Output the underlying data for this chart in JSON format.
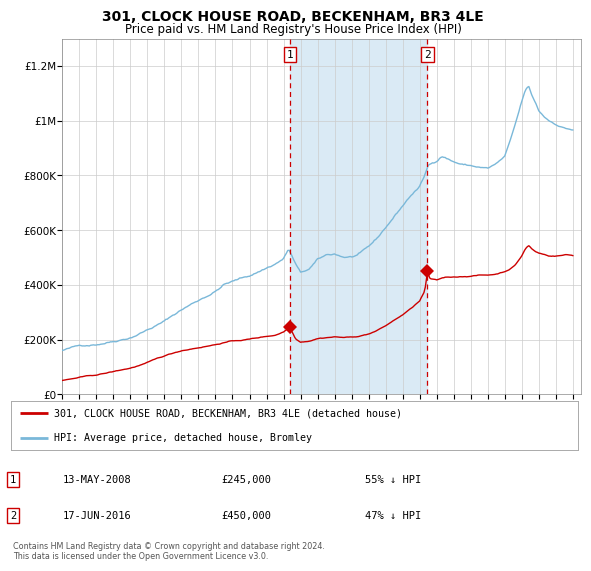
{
  "title": "301, CLOCK HOUSE ROAD, BECKENHAM, BR3 4LE",
  "subtitle": "Price paid vs. HM Land Registry's House Price Index (HPI)",
  "hpi_color": "#7ab8d9",
  "price_color": "#cc0000",
  "marker_color": "#cc0000",
  "bg_color": "#ffffff",
  "grid_color": "#cccccc",
  "shaded_color": "#daeaf5",
  "purchase1_date": 2008.37,
  "purchase1_price": 245000,
  "purchase2_date": 2016.46,
  "purchase2_price": 450000,
  "legend1": "301, CLOCK HOUSE ROAD, BECKENHAM, BR3 4LE (detached house)",
  "legend2": "HPI: Average price, detached house, Bromley",
  "note1_date": "13-MAY-2008",
  "note1_price": "£245,000",
  "note1_hpi": "55% ↓ HPI",
  "note2_date": "17-JUN-2016",
  "note2_price": "£450,000",
  "note2_hpi": "47% ↓ HPI",
  "copyright": "Contains HM Land Registry data © Crown copyright and database right 2024.\nThis data is licensed under the Open Government Licence v3.0.",
  "xmin": 1995,
  "xmax": 2025.5,
  "ymin": 0,
  "ymax": 1300000,
  "hpi_anchors": [
    [
      1995.0,
      160000
    ],
    [
      1996.0,
      175000
    ],
    [
      1997.0,
      185000
    ],
    [
      1998.0,
      200000
    ],
    [
      1999.0,
      218000
    ],
    [
      2000.0,
      248000
    ],
    [
      2001.0,
      278000
    ],
    [
      2002.0,
      320000
    ],
    [
      2003.0,
      355000
    ],
    [
      2004.0,
      390000
    ],
    [
      2004.5,
      415000
    ],
    [
      2005.0,
      425000
    ],
    [
      2005.5,
      435000
    ],
    [
      2006.0,
      445000
    ],
    [
      2007.0,
      475000
    ],
    [
      2007.5,
      490000
    ],
    [
      2008.0,
      510000
    ],
    [
      2008.3,
      545000
    ],
    [
      2008.7,
      490000
    ],
    [
      2009.0,
      455000
    ],
    [
      2009.5,
      468000
    ],
    [
      2010.0,
      500000
    ],
    [
      2010.5,
      515000
    ],
    [
      2011.0,
      520000
    ],
    [
      2011.5,
      510000
    ],
    [
      2012.0,
      510000
    ],
    [
      2012.5,
      520000
    ],
    [
      2013.0,
      540000
    ],
    [
      2013.5,
      570000
    ],
    [
      2014.0,
      610000
    ],
    [
      2014.5,
      650000
    ],
    [
      2015.0,
      690000
    ],
    [
      2015.5,
      730000
    ],
    [
      2016.0,
      760000
    ],
    [
      2016.3,
      800000
    ],
    [
      2016.5,
      835000
    ],
    [
      2017.0,
      855000
    ],
    [
      2017.3,
      875000
    ],
    [
      2017.5,
      870000
    ],
    [
      2018.0,
      855000
    ],
    [
      2018.5,
      845000
    ],
    [
      2019.0,
      840000
    ],
    [
      2019.5,
      835000
    ],
    [
      2020.0,
      830000
    ],
    [
      2020.5,
      845000
    ],
    [
      2021.0,
      870000
    ],
    [
      2021.3,
      920000
    ],
    [
      2021.6,
      980000
    ],
    [
      2022.0,
      1065000
    ],
    [
      2022.2,
      1105000
    ],
    [
      2022.4,
      1120000
    ],
    [
      2022.6,
      1085000
    ],
    [
      2022.8,
      1060000
    ],
    [
      2023.0,
      1030000
    ],
    [
      2023.3,
      1010000
    ],
    [
      2023.6,
      995000
    ],
    [
      2024.0,
      985000
    ],
    [
      2024.3,
      975000
    ],
    [
      2024.6,
      970000
    ],
    [
      2025.0,
      965000
    ]
  ],
  "price_anchors": [
    [
      1995.0,
      50000
    ],
    [
      1996.0,
      60000
    ],
    [
      1997.0,
      68000
    ],
    [
      1998.0,
      80000
    ],
    [
      1999.0,
      93000
    ],
    [
      2000.0,
      112000
    ],
    [
      2001.0,
      135000
    ],
    [
      2002.0,
      155000
    ],
    [
      2003.0,
      168000
    ],
    [
      2004.0,
      180000
    ],
    [
      2004.5,
      188000
    ],
    [
      2005.0,
      193000
    ],
    [
      2005.5,
      196000
    ],
    [
      2006.0,
      200000
    ],
    [
      2007.0,
      210000
    ],
    [
      2007.5,
      215000
    ],
    [
      2008.0,
      228000
    ],
    [
      2008.37,
      245000
    ],
    [
      2008.7,
      205000
    ],
    [
      2009.0,
      193000
    ],
    [
      2009.5,
      198000
    ],
    [
      2010.0,
      208000
    ],
    [
      2010.5,
      212000
    ],
    [
      2011.0,
      215000
    ],
    [
      2011.5,
      213000
    ],
    [
      2012.0,
      213000
    ],
    [
      2012.5,
      218000
    ],
    [
      2013.0,
      226000
    ],
    [
      2013.5,
      238000
    ],
    [
      2014.0,
      255000
    ],
    [
      2014.5,
      275000
    ],
    [
      2015.0,
      295000
    ],
    [
      2015.5,
      318000
    ],
    [
      2016.0,
      345000
    ],
    [
      2016.3,
      380000
    ],
    [
      2016.46,
      450000
    ],
    [
      2016.6,
      425000
    ],
    [
      2017.0,
      418000
    ],
    [
      2017.3,
      425000
    ],
    [
      2017.5,
      428000
    ],
    [
      2018.0,
      430000
    ],
    [
      2018.5,
      432000
    ],
    [
      2019.0,
      435000
    ],
    [
      2019.5,
      438000
    ],
    [
      2020.0,
      438000
    ],
    [
      2020.5,
      442000
    ],
    [
      2021.0,
      452000
    ],
    [
      2021.3,
      462000
    ],
    [
      2021.6,
      475000
    ],
    [
      2022.0,
      510000
    ],
    [
      2022.2,
      535000
    ],
    [
      2022.4,
      548000
    ],
    [
      2022.6,
      535000
    ],
    [
      2022.8,
      525000
    ],
    [
      2023.0,
      520000
    ],
    [
      2023.3,
      515000
    ],
    [
      2023.6,
      510000
    ],
    [
      2024.0,
      510000
    ],
    [
      2024.3,
      512000
    ],
    [
      2024.6,
      515000
    ],
    [
      2025.0,
      512000
    ]
  ]
}
